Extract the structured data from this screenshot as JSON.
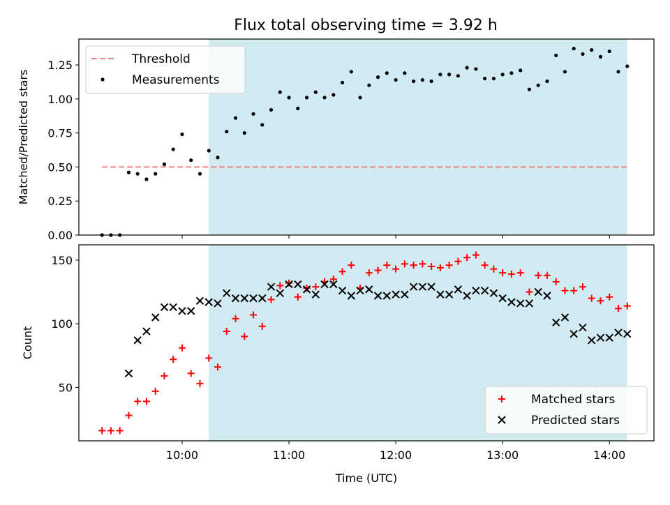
{
  "title": "Flux total observing time = 3.92 h",
  "colors": {
    "highlight": "#add8e6",
    "threshold": "#f08080",
    "measurement": "#000000",
    "matched": "#ff0000",
    "predicted": "#000000"
  },
  "chart_data": [
    {
      "type": "scatter",
      "ylabel": "Matched/Predicted stars",
      "xlabel": "",
      "x_unit": "time of day (UTC)",
      "xlim": [
        "09:02",
        "14:25"
      ],
      "ylim": [
        0,
        1.44
      ],
      "yticks": [
        0.0,
        0.25,
        0.5,
        0.75,
        1.0,
        1.25
      ],
      "ytick_labels": [
        "0.00",
        "0.25",
        "0.50",
        "0.75",
        "1.00",
        "1.25"
      ],
      "shaded_region": [
        "10:15",
        "14:10"
      ],
      "legend": {
        "placement": "top-left",
        "entries": [
          "Threshold",
          "Measurements"
        ]
      },
      "threshold": {
        "name": "Threshold",
        "y": 0.5,
        "x_range": [
          "09:15",
          "14:10"
        ],
        "style": "dashed"
      },
      "series": [
        {
          "name": "Measurements",
          "marker": "dot",
          "x": [
            "09:15",
            "09:20",
            "09:25",
            "09:30",
            "09:35",
            "09:40",
            "09:45",
            "09:50",
            "09:55",
            "10:00",
            "10:05",
            "10:10",
            "10:15",
            "10:20",
            "10:25",
            "10:30",
            "10:35",
            "10:40",
            "10:45",
            "10:50",
            "10:55",
            "11:00",
            "11:05",
            "11:10",
            "11:15",
            "11:20",
            "11:25",
            "11:30",
            "11:35",
            "11:40",
            "11:45",
            "11:50",
            "11:55",
            "12:00",
            "12:05",
            "12:10",
            "12:15",
            "12:20",
            "12:25",
            "12:30",
            "12:35",
            "12:40",
            "12:45",
            "12:50",
            "12:55",
            "13:00",
            "13:05",
            "13:10",
            "13:15",
            "13:20",
            "13:25",
            "13:30",
            "13:35",
            "13:40",
            "13:45",
            "13:50",
            "13:55",
            "14:00",
            "14:05",
            "14:10"
          ],
          "y": [
            0.0,
            0.0,
            0.0,
            0.46,
            0.45,
            0.41,
            0.45,
            0.52,
            0.63,
            0.74,
            0.55,
            0.45,
            0.62,
            0.57,
            0.76,
            0.86,
            0.75,
            0.89,
            0.81,
            0.92,
            1.05,
            1.01,
            0.93,
            1.01,
            1.05,
            1.01,
            1.03,
            1.12,
            1.2,
            1.01,
            1.1,
            1.16,
            1.19,
            1.14,
            1.19,
            1.13,
            1.14,
            1.13,
            1.18,
            1.18,
            1.17,
            1.23,
            1.22,
            1.15,
            1.15,
            1.18,
            1.19,
            1.21,
            1.07,
            1.1,
            1.13,
            1.32,
            1.2,
            1.37,
            1.33,
            1.36,
            1.31,
            1.35,
            1.2,
            1.24
          ]
        }
      ]
    },
    {
      "type": "scatter",
      "ylabel": "Count",
      "xlabel": "Time (UTC)",
      "x_unit": "time of day (UTC)",
      "xlim": [
        "09:02",
        "14:25"
      ],
      "ylim": [
        8,
        162
      ],
      "yticks": [
        50,
        100,
        150
      ],
      "ytick_labels": [
        "50",
        "100",
        "150"
      ],
      "xticks": [
        "10:00",
        "11:00",
        "12:00",
        "13:00",
        "14:00"
      ],
      "xtick_labels": [
        "10:00",
        "11:00",
        "12:00",
        "13:00",
        "14:00"
      ],
      "shaded_region": [
        "10:15",
        "14:10"
      ],
      "legend": {
        "placement": "bottom-right",
        "entries": [
          "Matched stars",
          "Predicted stars"
        ]
      },
      "series": [
        {
          "name": "Matched stars",
          "marker": "plus",
          "x": [
            "09:15",
            "09:20",
            "09:25",
            "09:30",
            "09:35",
            "09:40",
            "09:45",
            "09:50",
            "09:55",
            "10:00",
            "10:05",
            "10:10",
            "10:15",
            "10:20",
            "10:25",
            "10:30",
            "10:35",
            "10:40",
            "10:45",
            "10:50",
            "10:55",
            "11:00",
            "11:05",
            "11:10",
            "11:15",
            "11:20",
            "11:25",
            "11:30",
            "11:35",
            "11:40",
            "11:45",
            "11:50",
            "11:55",
            "12:00",
            "12:05",
            "12:10",
            "12:15",
            "12:20",
            "12:25",
            "12:30",
            "12:35",
            "12:40",
            "12:45",
            "12:50",
            "12:55",
            "13:00",
            "13:05",
            "13:10",
            "13:15",
            "13:20",
            "13:25",
            "13:30",
            "13:35",
            "13:40",
            "13:45",
            "13:50",
            "13:55",
            "14:00",
            "14:05",
            "14:10"
          ],
          "y": [
            16,
            16,
            16,
            28,
            39,
            39,
            47,
            59,
            72,
            81,
            61,
            53,
            73,
            66,
            94,
            104,
            90,
            107,
            98,
            119,
            130,
            132,
            121,
            128,
            129,
            133,
            135,
            141,
            146,
            128,
            140,
            142,
            146,
            143,
            147,
            146,
            147,
            145,
            144,
            146,
            149,
            152,
            154,
            146,
            143,
            140,
            139,
            140,
            125,
            138,
            138,
            133,
            126,
            126,
            129,
            120,
            118,
            121,
            112,
            114
          ]
        },
        {
          "name": "Predicted stars",
          "marker": "x",
          "x": [
            "09:30",
            "09:35",
            "09:40",
            "09:45",
            "09:50",
            "09:55",
            "10:00",
            "10:05",
            "10:10",
            "10:15",
            "10:20",
            "10:25",
            "10:30",
            "10:35",
            "10:40",
            "10:45",
            "10:50",
            "10:55",
            "11:00",
            "11:05",
            "11:10",
            "11:15",
            "11:20",
            "11:25",
            "11:30",
            "11:35",
            "11:40",
            "11:45",
            "11:50",
            "11:55",
            "12:00",
            "12:05",
            "12:10",
            "12:15",
            "12:20",
            "12:25",
            "12:30",
            "12:35",
            "12:40",
            "12:45",
            "12:50",
            "12:55",
            "13:00",
            "13:05",
            "13:10",
            "13:15",
            "13:20",
            "13:25",
            "13:30",
            "13:35",
            "13:40",
            "13:45",
            "13:50",
            "13:55",
            "14:00",
            "14:05",
            "14:10"
          ],
          "y": [
            61,
            87,
            94,
            105,
            113,
            113,
            110,
            110,
            118,
            117,
            116,
            124,
            120,
            120,
            120,
            120,
            129,
            124,
            131,
            131,
            127,
            123,
            131,
            131,
            126,
            122,
            126,
            127,
            122,
            122,
            123,
            123,
            129,
            129,
            129,
            123,
            123,
            127,
            122,
            126,
            126,
            124,
            120,
            117,
            116,
            116,
            125,
            122,
            101,
            105,
            92,
            97,
            87,
            89,
            89,
            93,
            92
          ]
        }
      ]
    }
  ]
}
